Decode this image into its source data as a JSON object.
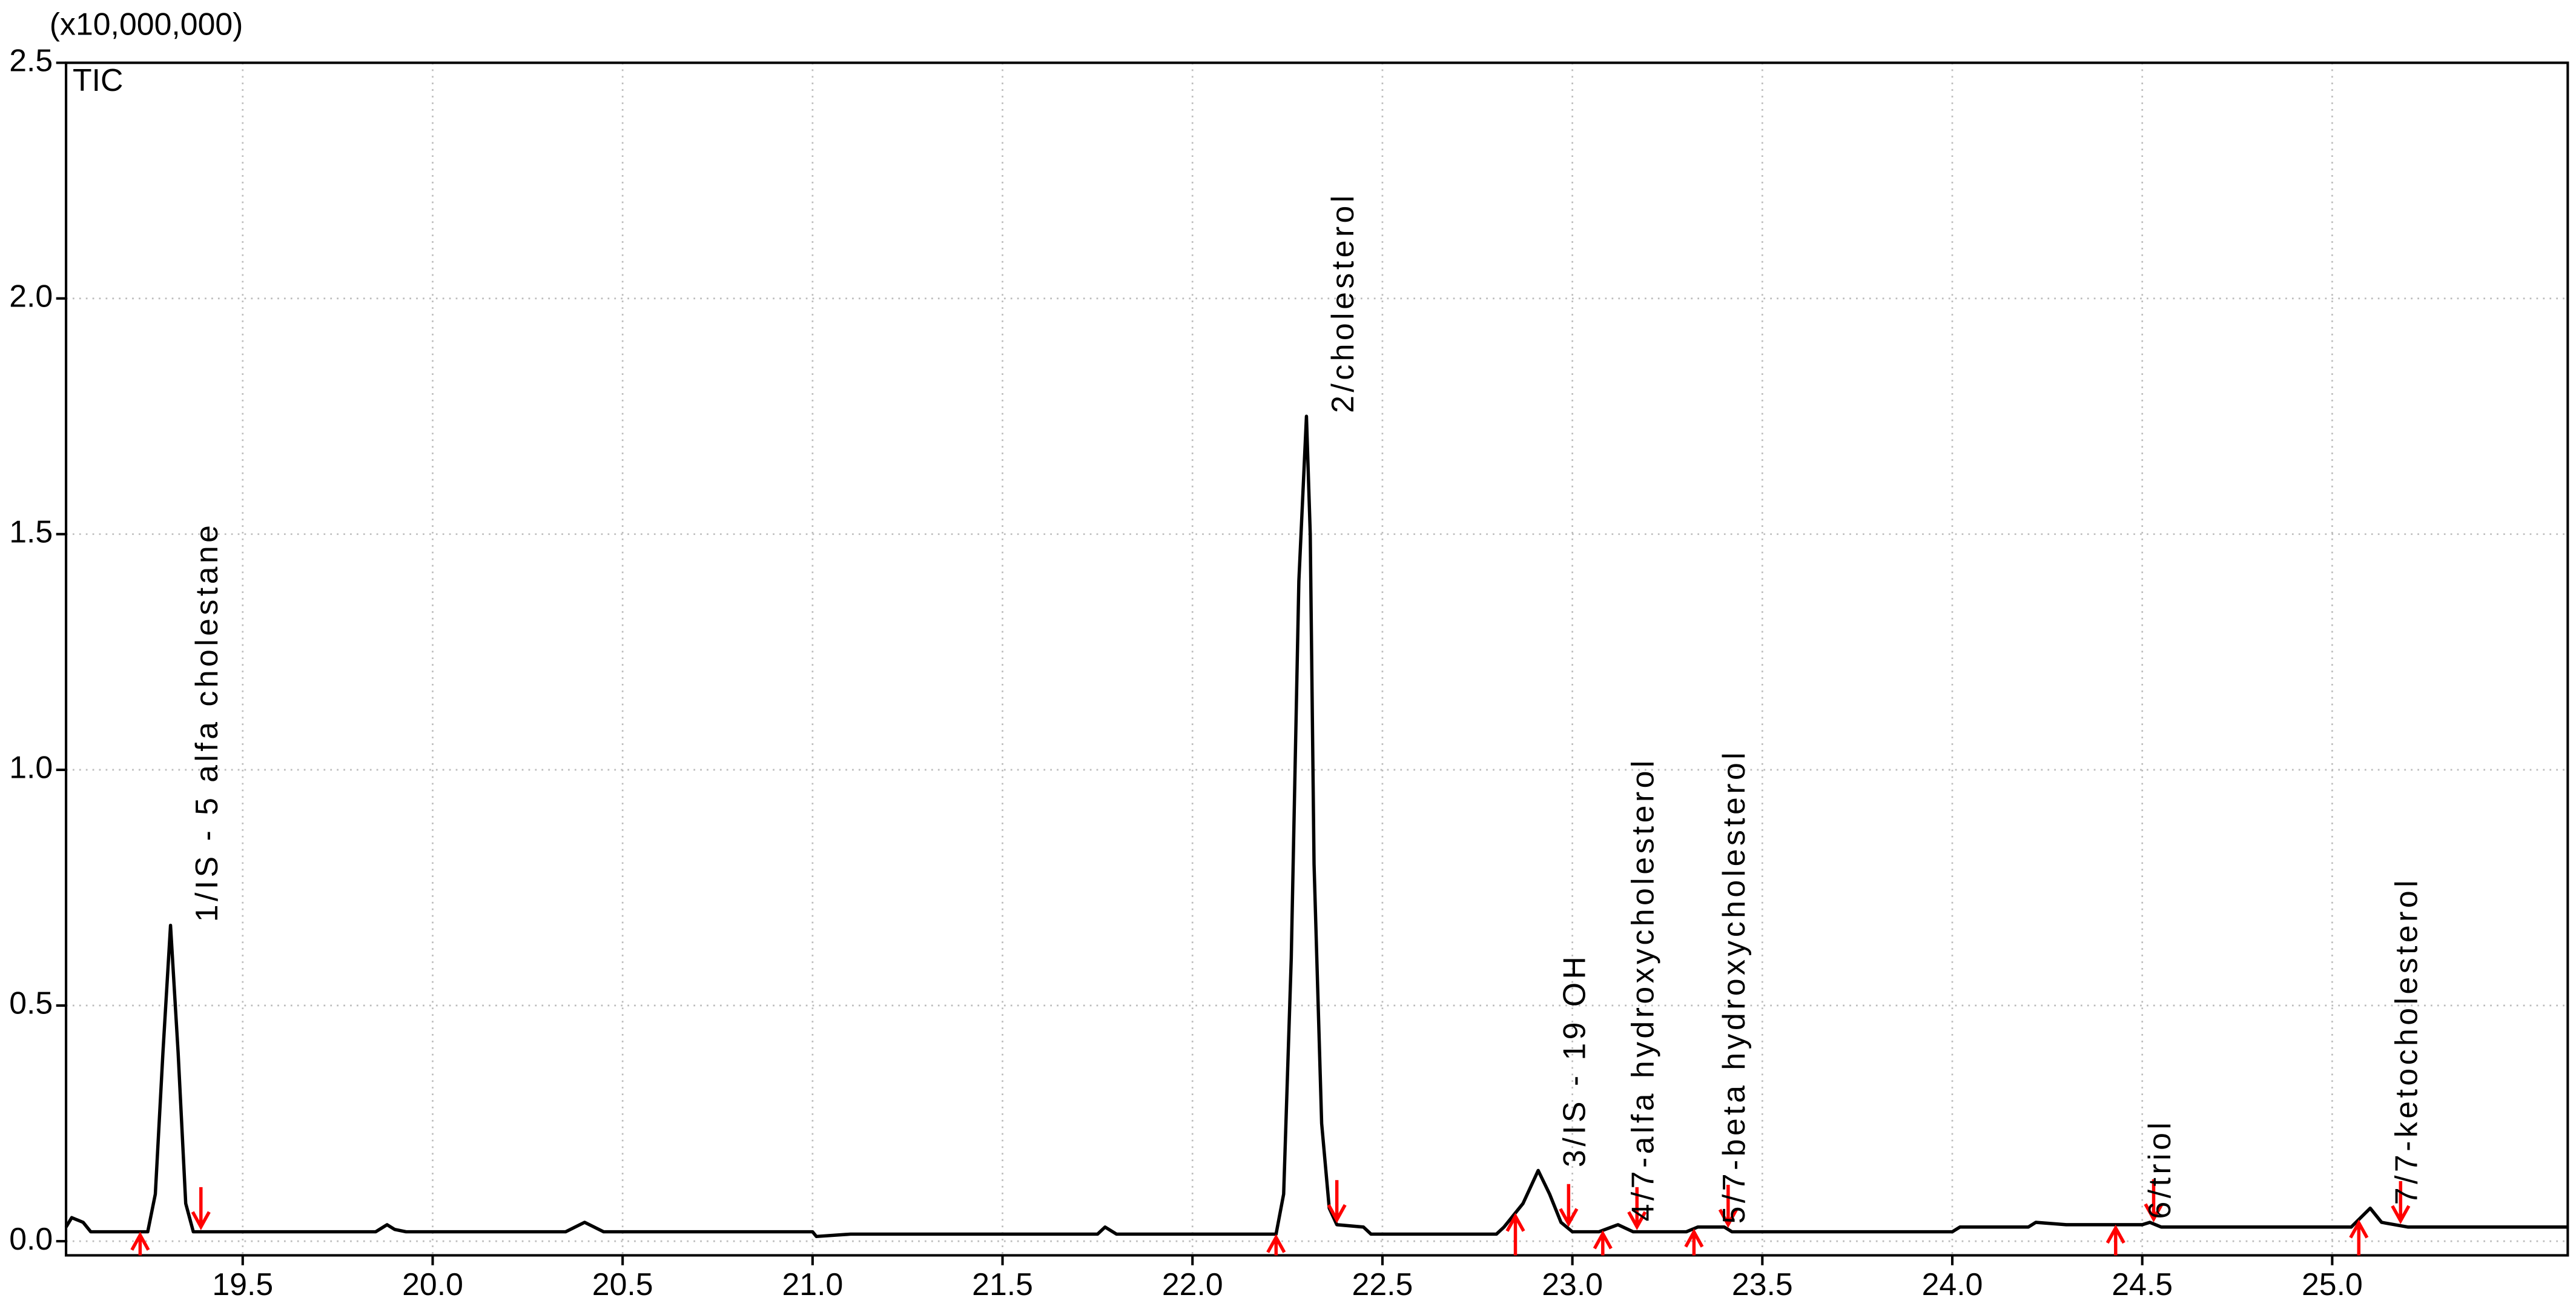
{
  "chart_data": {
    "type": "line",
    "y_axis_label": "(x10,000,000)",
    "xlim": [
      19.035,
      25.62
    ],
    "ylim": [
      -0.03,
      2.5
    ],
    "xticks": [
      19.5,
      {
        "value": 20,
        "label": "20.0"
      },
      20.5,
      {
        "value": 21,
        "label": "21.0"
      },
      21.5,
      {
        "value": 22,
        "label": "22.0"
      },
      22.5,
      {
        "value": 23,
        "label": "23.0"
      },
      23.5,
      {
        "value": 24,
        "label": "24.0"
      },
      24.5,
      {
        "value": 25,
        "label": "25.0"
      }
    ],
    "yticks": [
      {
        "value": 0,
        "label": "0.0"
      },
      0.5,
      {
        "value": 1,
        "label": "1.0"
      },
      1.5,
      {
        "value": 2,
        "label": "2.0"
      },
      2.5
    ],
    "grid": true,
    "marker_color": "#ff0000",
    "series": [
      {
        "name": "TIC",
        "color": "#000000",
        "x": [
          19.035,
          19.05,
          19.08,
          19.1,
          19.25,
          19.27,
          19.29,
          19.31,
          19.33,
          19.35,
          19.37,
          19.85,
          19.88,
          19.9,
          19.93,
          20.35,
          20.4,
          20.45,
          21.0,
          21.01,
          21.1,
          21.75,
          21.77,
          21.8,
          22.22,
          22.24,
          22.26,
          22.28,
          22.3,
          22.31,
          22.32,
          22.34,
          22.36,
          22.38,
          22.45,
          22.47,
          22.8,
          22.82,
          22.87,
          22.91,
          22.94,
          22.97,
          23.0,
          23.07,
          23.12,
          23.16,
          23.3,
          23.33,
          23.4,
          23.42,
          24.0,
          24.02,
          24.2,
          24.22,
          24.3,
          24.5,
          24.52,
          24.55,
          25.05,
          25.1,
          25.13,
          25.2,
          25.62
        ],
        "values": [
          0.03,
          0.05,
          0.04,
          0.02,
          0.02,
          0.1,
          0.4,
          0.67,
          0.4,
          0.08,
          0.02,
          0.02,
          0.035,
          0.025,
          0.02,
          0.02,
          0.04,
          0.02,
          0.02,
          0.01,
          0.015,
          0.015,
          0.03,
          0.015,
          0.015,
          0.1,
          0.6,
          1.4,
          1.75,
          1.5,
          0.8,
          0.25,
          0.07,
          0.035,
          0.03,
          0.015,
          0.015,
          0.03,
          0.08,
          0.15,
          0.1,
          0.04,
          0.02,
          0.02,
          0.035,
          0.02,
          0.02,
          0.03,
          0.03,
          0.02,
          0.02,
          0.03,
          0.03,
          0.04,
          0.035,
          0.035,
          0.04,
          0.03,
          0.03,
          0.07,
          0.04,
          0.03,
          0.03
        ]
      }
    ],
    "peaks": [
      {
        "label": "1/IS - 5 alfa cholestane",
        "start": 19.23,
        "end": 19.39
      },
      {
        "label": "2/cholesterol",
        "start": 22.22,
        "end": 22.38
      },
      {
        "label": "3/IS - 19 OH",
        "start": 22.85,
        "end": 22.99
      },
      {
        "label": "4/7-alfa hydroxycholesterol",
        "start": 23.08,
        "end": 23.17
      },
      {
        "label": "5/7-beta hydroxycholesterol",
        "start": 23.32,
        "end": 23.41
      },
      {
        "label": "6/triol",
        "start": 24.43,
        "end": 24.53
      },
      {
        "label": "7/7-ketocholesterol",
        "start": 25.07,
        "end": 25.18
      }
    ]
  }
}
